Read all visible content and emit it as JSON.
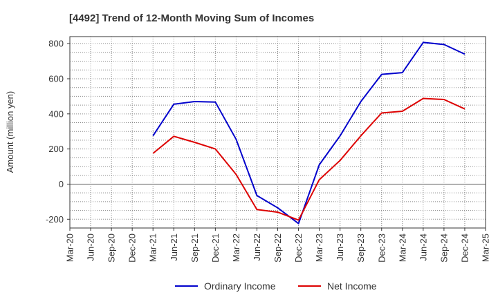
{
  "chart_data": {
    "type": "line",
    "title": "[4492]  Trend of 12-Month Moving Sum of Incomes",
    "xlabel": "",
    "ylabel": "Amount (million yen)",
    "ylim": [
      -250,
      840
    ],
    "yticks": [
      -200,
      0,
      200,
      400,
      600,
      800
    ],
    "categories": [
      "Mar-20",
      "Jun-20",
      "Sep-20",
      "Dec-20",
      "Mar-21",
      "Jun-21",
      "Sep-21",
      "Dec-21",
      "Mar-22",
      "Jun-22",
      "Sep-22",
      "Dec-22",
      "Mar-23",
      "Jun-23",
      "Sep-23",
      "Dec-23",
      "Mar-24",
      "Jun-24",
      "Sep-24",
      "Dec-24",
      "Mar-25"
    ],
    "grid": true,
    "legend_position": "bottom-center",
    "series": [
      {
        "name": "Ordinary Income",
        "color": "#0000cc",
        "values": [
          null,
          null,
          null,
          null,
          275,
          455,
          470,
          467,
          255,
          -65,
          -135,
          -225,
          110,
          275,
          470,
          625,
          635,
          807,
          795,
          740,
          null
        ]
      },
      {
        "name": "Net Income",
        "color": "#dd0000",
        "values": [
          null,
          null,
          null,
          null,
          175,
          272,
          238,
          200,
          55,
          -145,
          -160,
          -205,
          25,
          135,
          275,
          405,
          415,
          488,
          482,
          428,
          null
        ]
      }
    ]
  }
}
